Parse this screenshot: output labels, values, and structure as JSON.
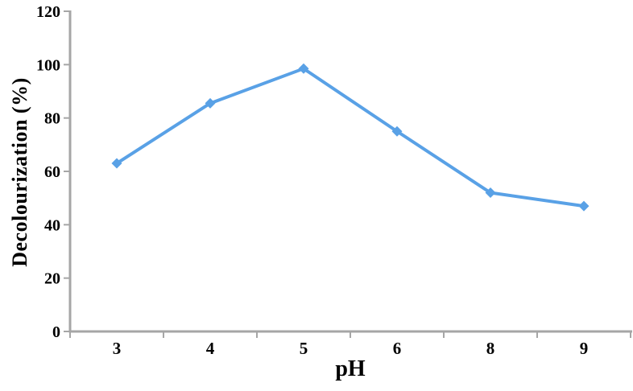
{
  "chart_data": {
    "type": "line",
    "title": "",
    "xlabel": "pH",
    "ylabel": "Decolourization (%)",
    "categories": [
      "3",
      "4",
      "5",
      "6",
      "8",
      "9"
    ],
    "series": [
      {
        "name": "Decolourization",
        "values": [
          63,
          85.5,
          98.5,
          75,
          52,
          47
        ]
      }
    ],
    "ylim": [
      0,
      120
    ],
    "yticks": [
      0,
      20,
      40,
      60,
      80,
      100,
      120
    ],
    "grid": false,
    "legend_position": "none",
    "marker": "diamond",
    "colors": {
      "line": "#59A1E6",
      "marker": "#59A1E6",
      "axis": "#A6A6A6",
      "text": "#000000",
      "background": "#FFFFFF"
    }
  }
}
